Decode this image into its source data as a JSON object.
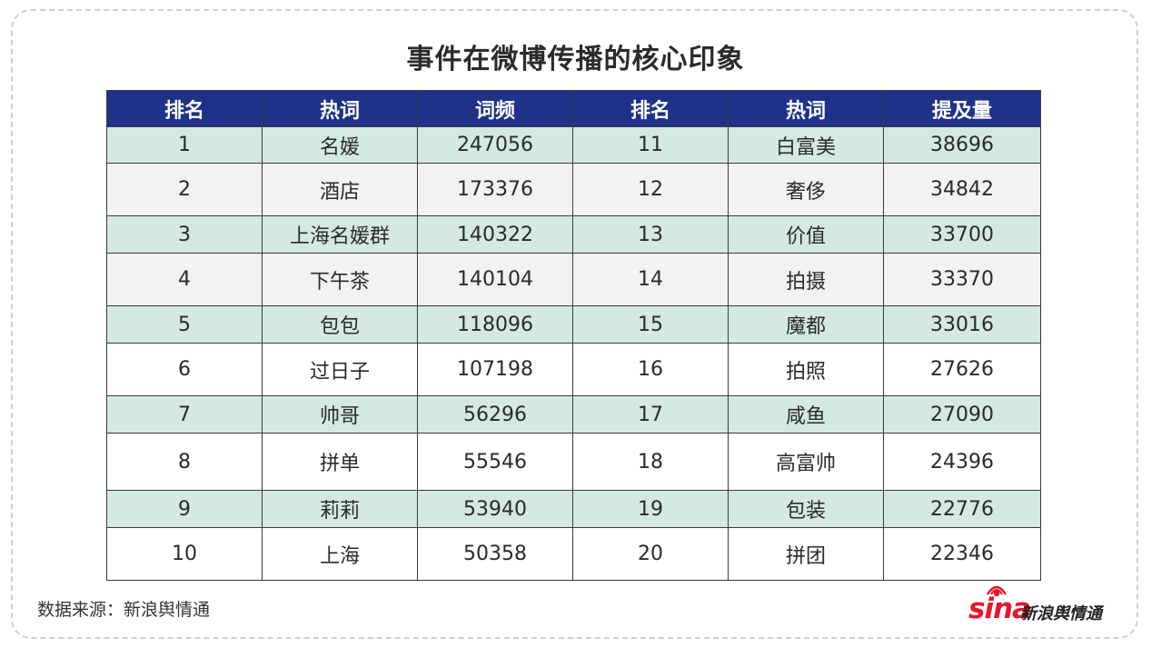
{
  "title": "事件在微博传播的核心印象",
  "table": {
    "headers": [
      "排名",
      "热词",
      "词频",
      "排名",
      "热词",
      "提及量"
    ],
    "rows": [
      [
        "1",
        "名媛",
        "247056",
        "11",
        "白富美",
        "38696"
      ],
      [
        "2",
        "酒店",
        "173376",
        "12",
        "奢侈",
        "34842"
      ],
      [
        "3",
        "上海名媛群",
        "140322",
        "13",
        "价值",
        "33700"
      ],
      [
        "4",
        "下午茶",
        "140104",
        "14",
        "拍摄",
        "33370"
      ],
      [
        "5",
        "包包",
        "118096",
        "15",
        "魔都",
        "33016"
      ],
      [
        "6",
        "过日子",
        "107198",
        "16",
        "拍照",
        "27626"
      ],
      [
        "7",
        "帅哥",
        "56296",
        "17",
        "咸鱼",
        "27090"
      ],
      [
        "8",
        "拼单",
        "55546",
        "18",
        "高富帅",
        "24396"
      ],
      [
        "9",
        "莉莉",
        "53940",
        "19",
        "包装",
        "22776"
      ],
      [
        "10",
        "上海",
        "50358",
        "20",
        "拼团",
        "22346"
      ]
    ]
  },
  "chart_data": {
    "type": "table",
    "title": "事件在微博传播的核心印象",
    "columns": [
      "排名",
      "热词",
      "词频",
      "排名",
      "热词",
      "提及量"
    ],
    "rows": [
      [
        1,
        "名媛",
        247056,
        11,
        "白富美",
        38696
      ],
      [
        2,
        "酒店",
        173376,
        12,
        "奢侈",
        34842
      ],
      [
        3,
        "上海名媛群",
        140322,
        13,
        "价值",
        33700
      ],
      [
        4,
        "下午茶",
        140104,
        14,
        "拍摄",
        33370
      ],
      [
        5,
        "包包",
        118096,
        15,
        "魔都",
        33016
      ],
      [
        6,
        "过日子",
        107198,
        16,
        "拍照",
        27626
      ],
      [
        7,
        "帅哥",
        56296,
        17,
        "咸鱼",
        27090
      ],
      [
        8,
        "拼单",
        55546,
        18,
        "高富帅",
        24396
      ],
      [
        9,
        "莉莉",
        53940,
        19,
        "包装",
        22776
      ],
      [
        10,
        "上海",
        50358,
        20,
        "拼团",
        22346
      ]
    ]
  },
  "footer": {
    "source": "数据来源：新浪舆情通",
    "logo_text": "sina",
    "logo_cn": "新浪舆情通"
  },
  "colors": {
    "header_bg": "#1f3288",
    "row_teal": "#d3e9e2",
    "row_gray": "#f2f2f2",
    "row_white": "#ffffff",
    "logo_red": "#e6162d"
  }
}
